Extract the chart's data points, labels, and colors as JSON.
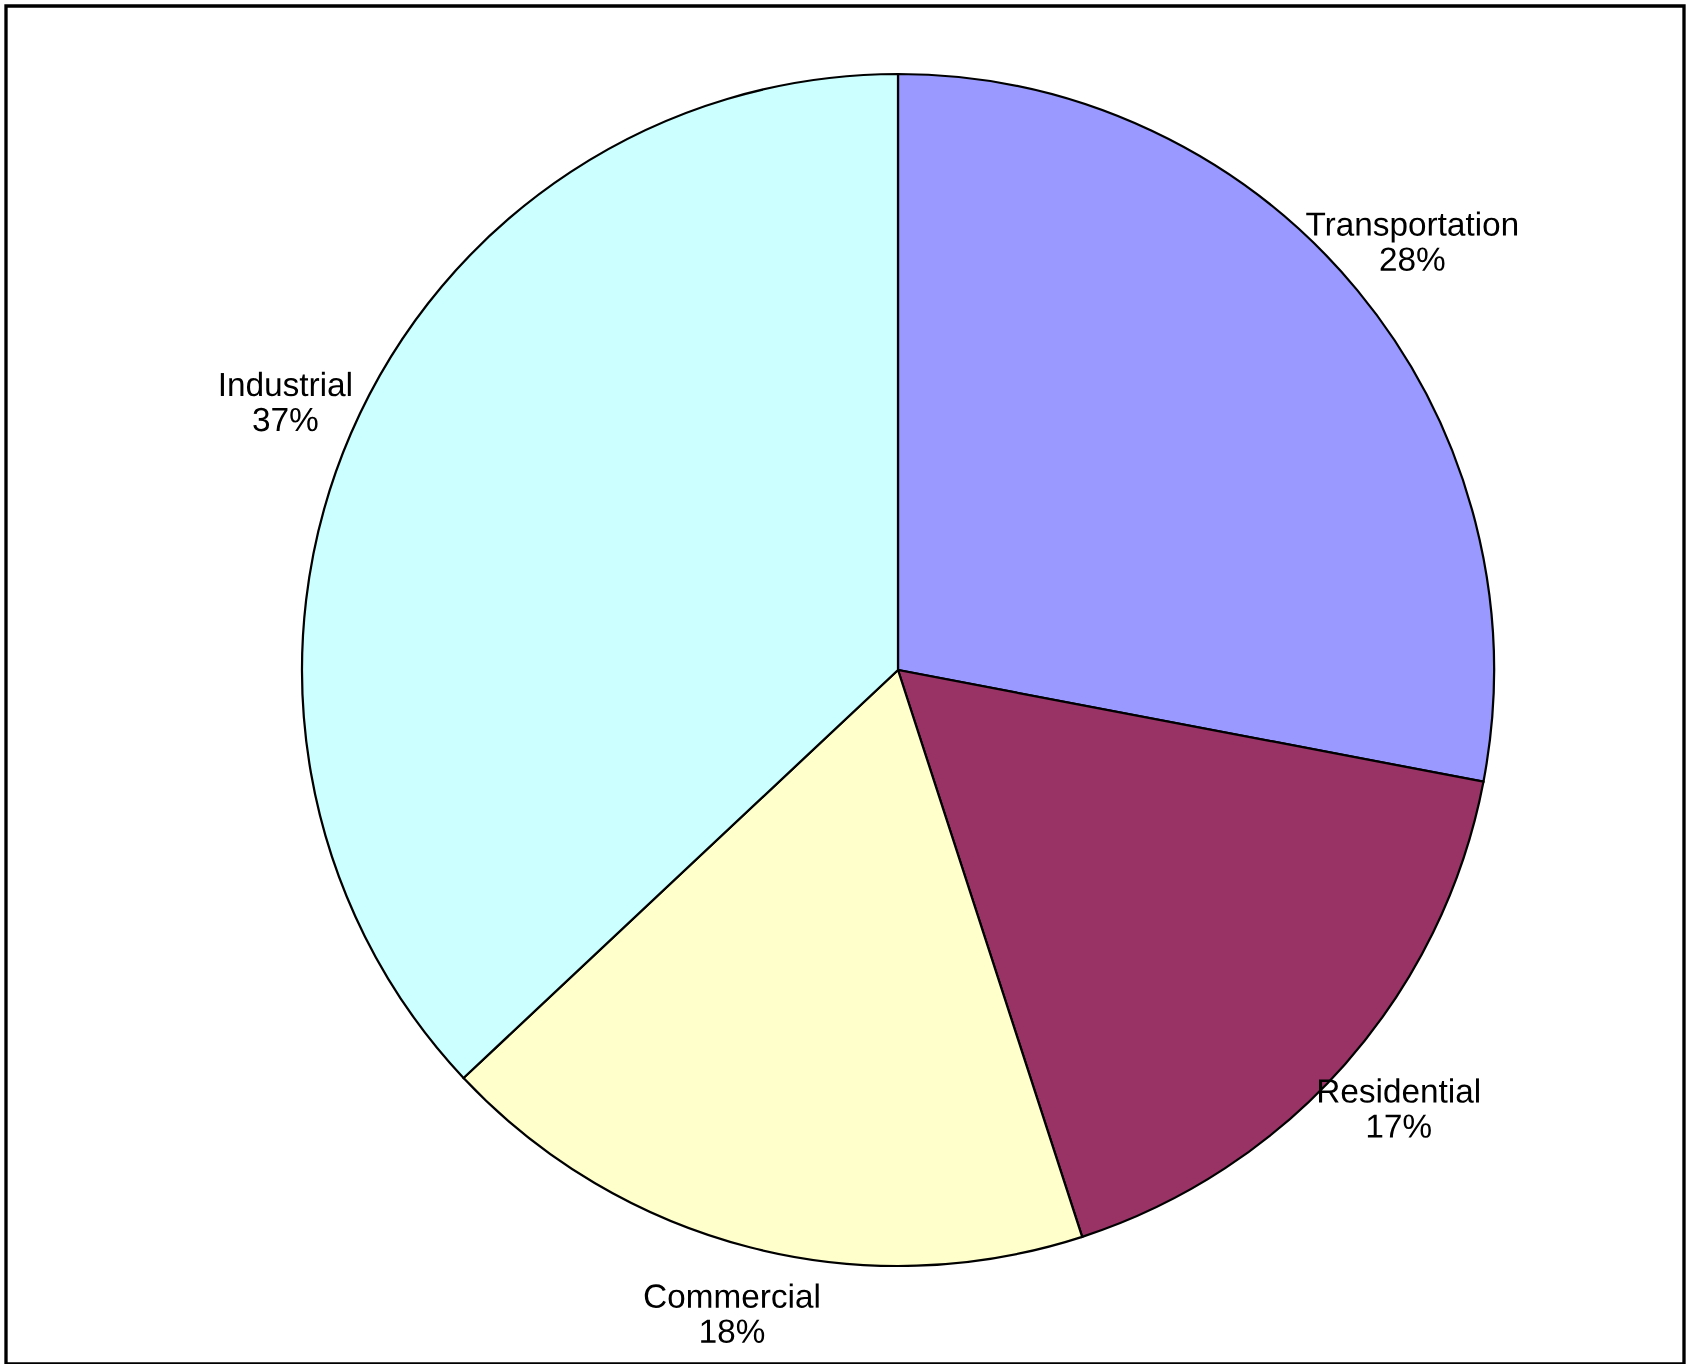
{
  "chart_data": {
    "type": "pie",
    "categories": [
      "Transportation",
      "Residential",
      "Commercial",
      "Industrial"
    ],
    "values": [
      28,
      17,
      18,
      37
    ],
    "value_labels": [
      "28%",
      "17%",
      "18%",
      "37%"
    ],
    "colors": [
      "#9999ff",
      "#993366",
      "#ffffcc",
      "#ccffff"
    ],
    "legend": false
  }
}
